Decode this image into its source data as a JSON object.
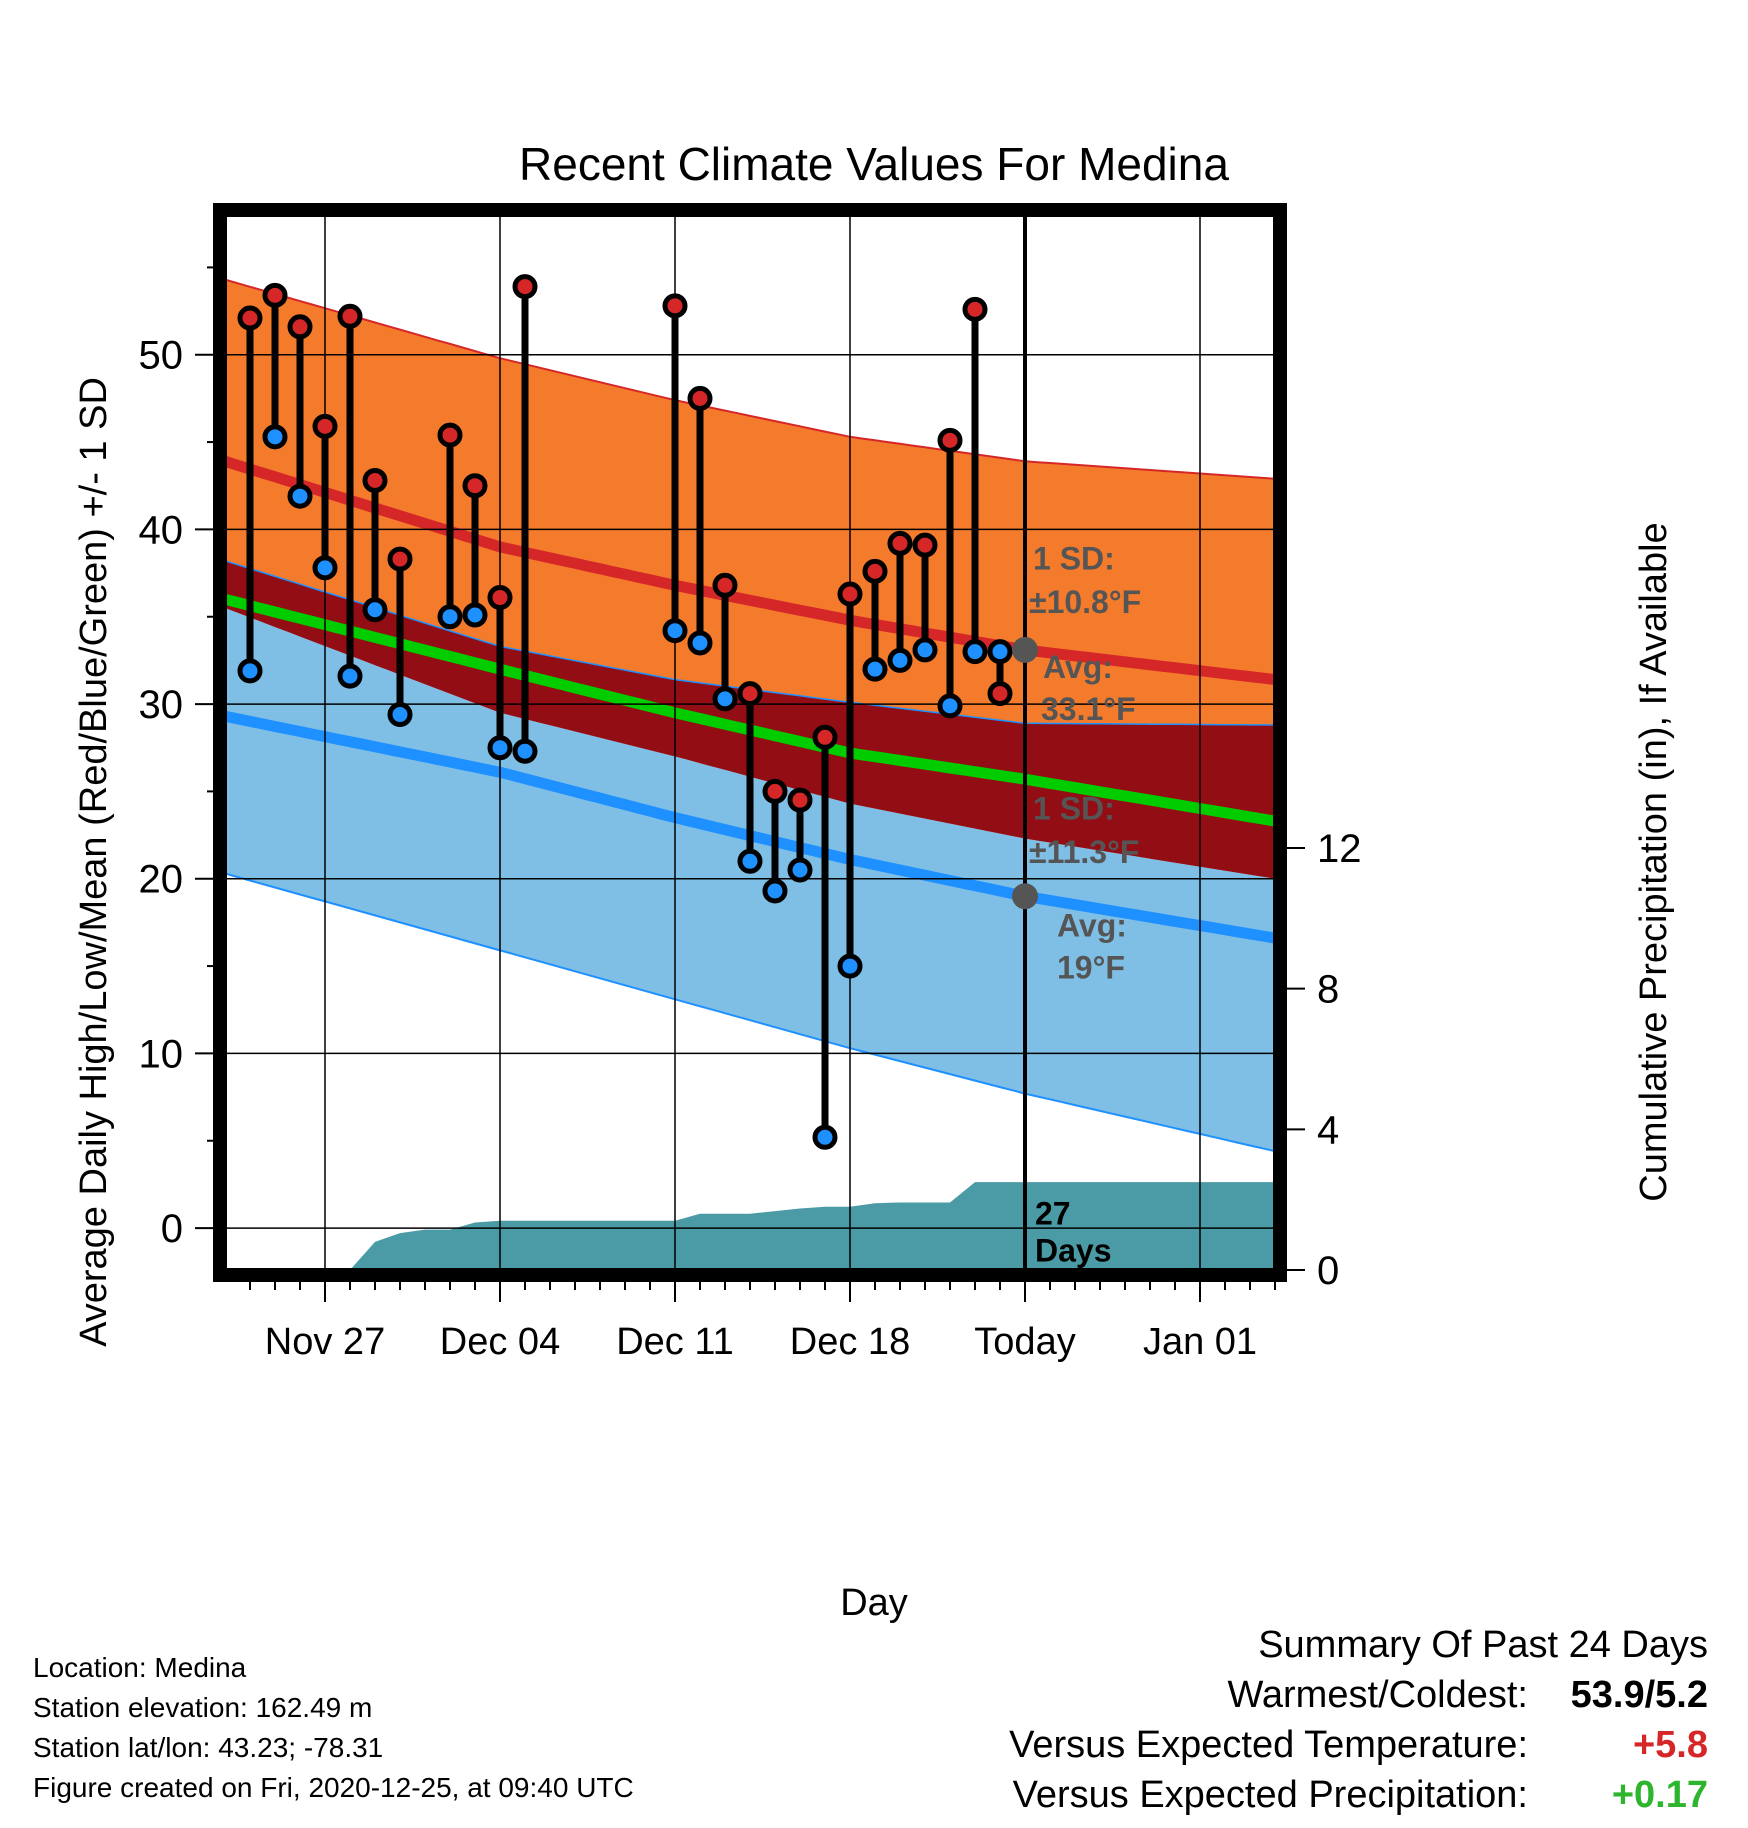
{
  "chart_data": {
    "type": "line",
    "title": "Recent Climate Values For Medina",
    "xlabel": "Day",
    "ylabel": "Average Daily High/Low/Mean (Red/Blue/Green) +/- 1 SD",
    "y2label": "Cumulative Precipitation (in), If Available",
    "x_range": [
      "2020-11-23",
      "2021-01-04"
    ],
    "ylim": [
      -2.4,
      58
    ],
    "y_ticks": [
      0,
      10,
      20,
      30,
      40,
      50
    ],
    "y2lim": [
      0,
      30
    ],
    "y2_ticks": [
      0,
      4,
      8,
      12
    ],
    "x_ticks": [
      {
        "date": "2020-11-27",
        "label": "Nov 27"
      },
      {
        "date": "2020-12-04",
        "label": "Dec 04"
      },
      {
        "date": "2020-12-11",
        "label": "Dec 11"
      },
      {
        "date": "2020-12-18",
        "label": "Dec 18"
      },
      {
        "date": "2020-12-25",
        "label": "Today"
      },
      {
        "date": "2021-01-01",
        "label": "Jan 01"
      }
    ],
    "grid": true,
    "today": "2020-12-25",
    "normals": {
      "dates": [
        "2020-11-23",
        "2020-12-04",
        "2020-12-11",
        "2020-12-18",
        "2020-12-25",
        "2021-01-04"
      ],
      "high_avg": [
        43.9,
        39.0,
        36.8,
        34.8,
        33.1,
        31.4
      ],
      "high_upper": [
        54.3,
        49.8,
        47.4,
        45.3,
        43.9,
        42.9
      ],
      "high_lower": [
        38.2,
        33.3,
        31.4,
        30.1,
        28.9,
        28.8
      ],
      "mean_avg": [
        36.0,
        32.0,
        29.5,
        27.2,
        25.7,
        23.3
      ],
      "low_avg": [
        29.3,
        26.1,
        23.5,
        21.1,
        19.0,
        16.6
      ],
      "low_upper": [
        35.5,
        29.5,
        27.0,
        24.3,
        22.3,
        20.0
      ],
      "low_lower": [
        20.3,
        15.9,
        13.1,
        10.3,
        7.7,
        4.4
      ]
    },
    "series": [
      {
        "name": "High",
        "color": "#d62728",
        "dates": [
          "2020-11-24",
          "2020-11-25",
          "2020-11-26",
          "2020-11-27",
          "2020-11-28",
          "2020-11-29",
          "2020-11-30",
          "2020-12-02",
          "2020-12-03",
          "2020-12-04",
          "2020-12-05",
          "2020-12-11",
          "2020-12-12",
          "2020-12-13",
          "2020-12-14",
          "2020-12-15",
          "2020-12-16",
          "2020-12-17",
          "2020-12-18",
          "2020-12-19",
          "2020-12-20",
          "2020-12-21",
          "2020-12-22",
          "2020-12-23",
          "2020-12-24"
        ],
        "values": [
          52.1,
          53.4,
          51.6,
          45.9,
          52.2,
          42.8,
          38.3,
          45.4,
          42.5,
          36.1,
          53.9,
          52.8,
          47.5,
          36.8,
          30.6,
          25.0,
          24.5,
          28.1,
          36.3,
          37.6,
          39.2,
          39.1,
          45.1,
          52.6,
          30.6
        ]
      },
      {
        "name": "Low",
        "color": "#1e90ff",
        "dates": [
          "2020-11-24",
          "2020-11-25",
          "2020-11-26",
          "2020-11-27",
          "2020-11-28",
          "2020-11-29",
          "2020-11-30",
          "2020-12-02",
          "2020-12-03",
          "2020-12-04",
          "2020-12-05",
          "2020-12-11",
          "2020-12-12",
          "2020-12-13",
          "2020-12-14",
          "2020-12-15",
          "2020-12-16",
          "2020-12-17",
          "2020-12-18",
          "2020-12-19",
          "2020-12-20",
          "2020-12-21",
          "2020-12-22",
          "2020-12-23",
          "2020-12-24"
        ],
        "values": [
          31.9,
          45.3,
          41.9,
          37.8,
          31.6,
          35.4,
          29.4,
          35.0,
          35.1,
          27.5,
          27.3,
          34.2,
          33.5,
          30.3,
          21.0,
          19.3,
          20.5,
          5.2,
          15.0,
          32.0,
          32.5,
          33.1,
          29.9,
          33.0,
          33.0
        ]
      },
      {
        "name": "Precipitation",
        "color": "#4a9ba5",
        "dates": [
          "2020-11-23",
          "2020-11-28",
          "2020-11-29",
          "2020-11-30",
          "2020-12-01",
          "2020-12-02",
          "2020-12-03",
          "2020-12-04",
          "2020-12-11",
          "2020-12-12",
          "2020-12-13",
          "2020-12-14",
          "2020-12-16",
          "2020-12-17",
          "2020-12-18",
          "2020-12-19",
          "2020-12-20",
          "2020-12-21",
          "2020-12-22",
          "2020-12-23",
          "2020-12-24",
          "2021-01-04"
        ],
        "values": [
          0,
          0,
          0.8,
          1.05,
          1.15,
          1.15,
          1.35,
          1.4,
          1.4,
          1.6,
          1.6,
          1.6,
          1.75,
          1.8,
          1.8,
          1.9,
          1.92,
          1.92,
          1.92,
          2.5,
          2.5,
          2.5
        ]
      }
    ],
    "annotations": {
      "high_sd": "1 SD:",
      "high_sd_val": "±10.8°F",
      "high_avg": "Avg:",
      "high_avg_val": "33.1°F",
      "low_sd": "1 SD:",
      "low_sd_val": "±11.3°F",
      "low_avg": "Avg:",
      "low_avg_val": "19°F",
      "days_num": "27",
      "days_word": "Days"
    }
  },
  "info": {
    "location": "Location: Medina",
    "elevation": "Station elevation: 162.49 m",
    "latlon": "Station lat/lon: 43.23; -78.31",
    "created": "Figure created on Fri, 2020-12-25, at 09:40 UTC"
  },
  "summary": {
    "heading": "Summary Of Past 24 Days",
    "warm_cold_label": "Warmest/Coldest:",
    "warm_cold_value": "53.9/5.2",
    "temp_label": "Versus Expected Temperature:",
    "temp_value": "+5.8",
    "temp_color": "#d62728",
    "precip_label": "Versus Expected Precipitation:",
    "precip_value": "+0.17",
    "precip_color": "#2db52d"
  },
  "colors": {
    "high_band": "#f47b2c",
    "mean_band": "#920d14",
    "low_band": "#7fbfe6",
    "high_line": "#d62728",
    "mean_line": "#00cc00",
    "low_line": "#1e90ff",
    "precip": "#4a9ba5",
    "annotation": "#555555"
  }
}
